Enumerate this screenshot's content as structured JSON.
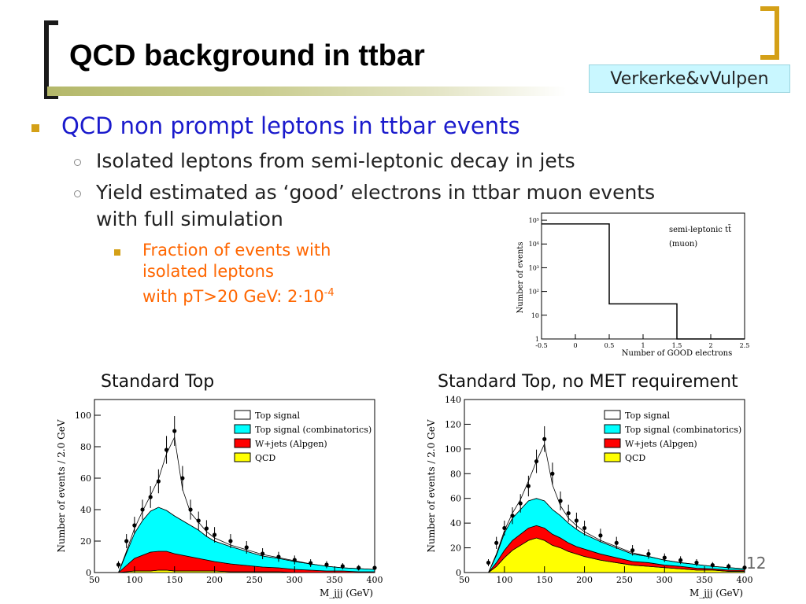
{
  "slide": {
    "title": "QCD background in ttbar",
    "credit": "Verkerke&vVulpen",
    "page_number": "12",
    "bullets": {
      "level1": "QCD non prompt leptons in ttbar events",
      "level2": [
        "Isolated leptons from semi-leptonic decay in jets",
        "Yield estimated as ‘good’ electrons in ttbar muon events",
        "with full simulation"
      ],
      "level3": [
        "Fraction of events with",
        "isolated leptons",
        "with pT>20 GeV: 2·10"
      ],
      "level3_sup": "-4"
    },
    "captions": {
      "left": "Standard Top",
      "right": "Standard Top, no MET requirement"
    }
  },
  "colors": {
    "bullet": "#d4a017",
    "level1_text": "#1a1acc",
    "level3_text": "#ff6600",
    "credit_bg": "#c9f7ff"
  },
  "chart_data": [
    {
      "type": "bar",
      "title": "",
      "annotation": [
        "semi-leptonic tt̄",
        "(muon)"
      ],
      "xlabel": "Number of GOOD electrons",
      "ylabel": "Number of events",
      "x_ticks": [
        "-0.5",
        "0",
        "0.5",
        "1",
        "1.5",
        "2",
        "2.5"
      ],
      "y_ticks": [
        "1",
        "10",
        "10²",
        "10³",
        "10⁴",
        "10⁵"
      ],
      "log_y": true,
      "xlim": [
        -0.5,
        2.5
      ],
      "bins": [
        [
          -0.5,
          0.5
        ],
        [
          0.5,
          1.5
        ],
        [
          1.5,
          2.5
        ]
      ],
      "values": [
        70000,
        30,
        1
      ]
    },
    {
      "type": "area",
      "xlabel": "M_jjj (GeV)",
      "ylabel": "Number of events / 2.0 GeV",
      "xlim": [
        50,
        400
      ],
      "ylim": [
        0,
        110
      ],
      "x_ticks": [
        "50",
        "100",
        "150",
        "200",
        "250",
        "300",
        "350",
        "400"
      ],
      "y_ticks": [
        "0",
        "20",
        "40",
        "60",
        "80",
        "100"
      ],
      "legend_position": "top-right",
      "x": [
        80,
        90,
        100,
        110,
        120,
        130,
        140,
        150,
        160,
        170,
        180,
        190,
        200,
        220,
        240,
        260,
        280,
        300,
        320,
        340,
        360,
        380,
        400
      ],
      "series": [
        {
          "name": "QCD",
          "color": "#ffff00",
          "values": [
            0,
            0.5,
            1,
            1,
            1,
            1.5,
            1.5,
            1,
            1,
            1,
            1,
            1,
            1,
            0.5,
            0.5,
            0.5,
            0.5,
            0,
            0,
            0,
            0,
            0,
            0
          ]
        },
        {
          "name": "W+jets (Alpgen)",
          "color": "#ff0000",
          "values": [
            0,
            4,
            8,
            10,
            12,
            12,
            12,
            11,
            10,
            9,
            8,
            7,
            6,
            5,
            4,
            3,
            2.5,
            2,
            1.5,
            1,
            1,
            0.5,
            0.5
          ]
        },
        {
          "name": "Top signal (combinatorics)",
          "color": "#00ffff",
          "values": [
            0,
            8,
            16,
            22,
            26,
            28,
            26,
            24,
            22,
            20,
            18,
            15,
            13,
            11,
            9,
            7,
            6,
            5,
            4,
            3,
            2,
            2,
            1.5
          ]
        },
        {
          "name": "Top signal",
          "color": "#ffffff",
          "values": [
            0,
            1,
            3,
            6,
            10,
            18,
            36,
            50,
            20,
            8,
            5,
            3,
            2,
            1,
            1,
            1,
            0.5,
            0.5,
            0,
            0,
            0,
            0,
            0
          ]
        }
      ],
      "data_points": [
        [
          80,
          5
        ],
        [
          90,
          20
        ],
        [
          100,
          30
        ],
        [
          110,
          40
        ],
        [
          120,
          48
        ],
        [
          130,
          58
        ],
        [
          140,
          78
        ],
        [
          150,
          90
        ],
        [
          160,
          60
        ],
        [
          170,
          40
        ],
        [
          180,
          33
        ],
        [
          190,
          28
        ],
        [
          200,
          24
        ],
        [
          220,
          20
        ],
        [
          240,
          16
        ],
        [
          260,
          12
        ],
        [
          280,
          10
        ],
        [
          300,
          8
        ],
        [
          320,
          6
        ],
        [
          340,
          5
        ],
        [
          360,
          4
        ],
        [
          380,
          3
        ],
        [
          400,
          3
        ]
      ]
    },
    {
      "type": "area",
      "xlabel": "M_jjj (GeV)",
      "ylabel": "Number of events / 2.0 GeV",
      "xlim": [
        50,
        400
      ],
      "ylim": [
        0,
        140
      ],
      "x_ticks": [
        "50",
        "100",
        "150",
        "200",
        "250",
        "300",
        "350",
        "400"
      ],
      "y_ticks": [
        "0",
        "20",
        "40",
        "60",
        "80",
        "100",
        "120",
        "140"
      ],
      "legend_position": "top-right",
      "x": [
        80,
        90,
        100,
        110,
        120,
        130,
        140,
        150,
        160,
        170,
        180,
        190,
        200,
        220,
        240,
        260,
        280,
        300,
        320,
        340,
        360,
        380,
        400
      ],
      "series": [
        {
          "name": "QCD",
          "color": "#ffff00",
          "values": [
            0,
            5,
            12,
            18,
            22,
            26,
            28,
            26,
            22,
            20,
            17,
            15,
            13,
            10,
            8,
            6,
            5,
            4,
            3,
            2,
            2,
            1,
            1
          ]
        },
        {
          "name": "W+jets (Alpgen)",
          "color": "#ff0000",
          "values": [
            0,
            3,
            6,
            8,
            9,
            10,
            10,
            10,
            9,
            8,
            7,
            6,
            6,
            5,
            4,
            3,
            3,
            2,
            2,
            1.5,
            1,
            1,
            1
          ]
        },
        {
          "name": "Top signal (combinatorics)",
          "color": "#00ffff",
          "values": [
            0,
            6,
            14,
            18,
            20,
            22,
            22,
            22,
            20,
            18,
            16,
            14,
            12,
            10,
            8,
            6,
            5,
            4,
            3,
            3,
            2,
            2,
            1
          ]
        },
        {
          "name": "Top signal",
          "color": "#ffffff",
          "values": [
            0,
            1,
            2,
            4,
            8,
            16,
            30,
            46,
            20,
            8,
            4,
            3,
            2,
            1,
            1,
            1,
            0,
            0,
            0,
            0,
            0,
            0,
            0
          ]
        }
      ],
      "data_points": [
        [
          80,
          8
        ],
        [
          90,
          24
        ],
        [
          100,
          36
        ],
        [
          110,
          46
        ],
        [
          120,
          56
        ],
        [
          130,
          70
        ],
        [
          140,
          90
        ],
        [
          150,
          108
        ],
        [
          160,
          80
        ],
        [
          170,
          58
        ],
        [
          180,
          48
        ],
        [
          190,
          42
        ],
        [
          200,
          36
        ],
        [
          220,
          30
        ],
        [
          240,
          24
        ],
        [
          260,
          18
        ],
        [
          280,
          15
        ],
        [
          300,
          12
        ],
        [
          320,
          10
        ],
        [
          340,
          8
        ],
        [
          360,
          6
        ],
        [
          380,
          5
        ],
        [
          400,
          4
        ]
      ]
    }
  ]
}
